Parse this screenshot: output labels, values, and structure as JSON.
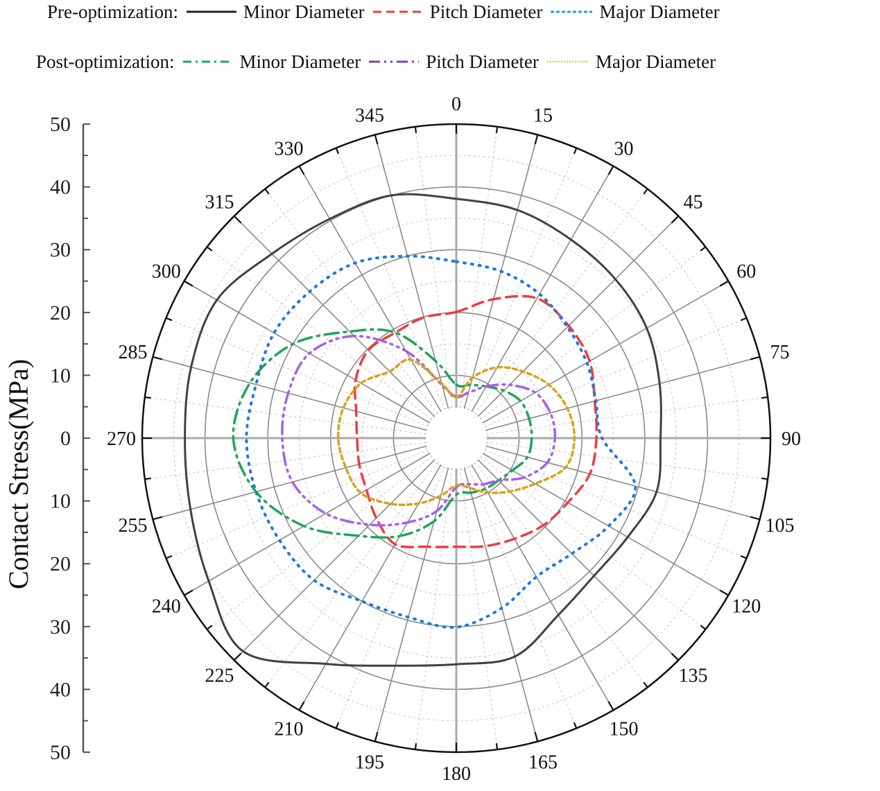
{
  "legend": {
    "rows": [
      {
        "group_label": "Pre-optimization:",
        "items": [
          {
            "label": "Minor Diameter",
            "series": "pre_minor"
          },
          {
            "label": "Pitch Diameter",
            "series": "pre_pitch"
          },
          {
            "label": "Major Diameter",
            "series": "pre_major"
          }
        ]
      },
      {
        "group_label": "Post-optimization:",
        "items": [
          {
            "label": "Minor Diameter",
            "series": "post_minor"
          },
          {
            "label": "Pitch Diameter",
            "series": "post_pitch"
          },
          {
            "label": "Major Diameter",
            "series": "post_major"
          }
        ]
      }
    ]
  },
  "chart_data": {
    "type": "polar-line",
    "title": "",
    "ylabel": "Contact Stress(MPa)",
    "radial_axis": {
      "min": 0,
      "max": 50,
      "major_ticks": [
        0,
        10,
        20,
        30,
        40,
        50
      ],
      "minor_step": 5
    },
    "angular_axis": {
      "direction": "clockwise",
      "zero_at": "top",
      "tick_labels": [
        0,
        15,
        30,
        45,
        60,
        75,
        90,
        105,
        120,
        135,
        150,
        165,
        180,
        195,
        210,
        225,
        240,
        255,
        270,
        285,
        300,
        315,
        330,
        345
      ]
    },
    "grid": true,
    "angles": [
      0,
      15,
      30,
      45,
      60,
      75,
      90,
      105,
      120,
      135,
      150,
      165,
      180,
      195,
      210,
      225,
      240,
      255,
      270,
      285,
      300,
      315,
      330,
      345
    ],
    "series": [
      {
        "id": "pre_minor",
        "name": "Pre-optimization: Minor Diameter",
        "color": "#404040",
        "style": "solid",
        "values": [
          38.1,
          37.6,
          36.5,
          35.8,
          35.0,
          33.5,
          32.5,
          33.0,
          31.5,
          31.0,
          32.5,
          36.0,
          36.0,
          37.5,
          41.5,
          48.0,
          45.5,
          43.8,
          43.2,
          43.7,
          44.0,
          41.5,
          40.3,
          40.0
        ]
      },
      {
        "id": "pre_pitch",
        "name": "Pre-optimization: Pitch Diameter",
        "color": "#f23b3b",
        "style": "dashed",
        "values": [
          20.1,
          22.9,
          25.7,
          25.3,
          24.5,
          22.8,
          22.3,
          22.0,
          20.5,
          19.6,
          18.5,
          17.8,
          17.3,
          17.9,
          19.5,
          18.0,
          16.5,
          16.0,
          15.8,
          16.5,
          18.5,
          19.8,
          19.4,
          19.9
        ]
      },
      {
        "id": "pre_major",
        "name": "Pre-optimization: Major Diameter",
        "color": "#1f77e0",
        "style": "dotted",
        "values": [
          28.1,
          27.5,
          26.5,
          25.0,
          24.0,
          23.0,
          23.2,
          29.5,
          28.0,
          26.0,
          25.5,
          28.0,
          30.1,
          29.5,
          30.0,
          32.0,
          32.5,
          33.0,
          33.4,
          33.0,
          33.5,
          33.0,
          32.2,
          30.0
        ]
      },
      {
        "id": "post_minor",
        "name": "Post-optimization: Minor Diameter",
        "color": "#1fa35c",
        "style": "dash-dot",
        "values": [
          8.5,
          8.8,
          9.5,
          10.7,
          11.8,
          12.0,
          12.0,
          11.7,
          10.3,
          9.5,
          9.3,
          9.0,
          9.0,
          13.7,
          18.0,
          22.0,
          28.0,
          33.0,
          35.5,
          34.0,
          30.0,
          24.0,
          19.4,
          12.7
        ]
      },
      {
        "id": "post_pitch",
        "name": "Post-optimization: Pitch Diameter",
        "color": "#a85ee8",
        "style": "dash-dot-dot",
        "values": [
          6.6,
          7.5,
          9.5,
          12.0,
          14.5,
          15.5,
          15.7,
          15.0,
          12.5,
          9.5,
          8.5,
          7.6,
          7.8,
          12.0,
          15.5,
          19.5,
          24.0,
          27.0,
          27.7,
          27.7,
          27.0,
          23.0,
          16.0,
          8.7
        ]
      },
      {
        "id": "post_major",
        "name": "Post-optimization: Major Diameter",
        "color": "#d9a21b",
        "style": "short-dot",
        "values": [
          6.5,
          10.0,
          13.0,
          15.0,
          17.0,
          18.3,
          18.8,
          18.0,
          14.5,
          12.0,
          10.0,
          8.2,
          7.5,
          9.5,
          12.0,
          14.8,
          17.5,
          18.2,
          18.8,
          18.6,
          17.5,
          15.0,
          14.4,
          9.0
        ]
      }
    ]
  }
}
